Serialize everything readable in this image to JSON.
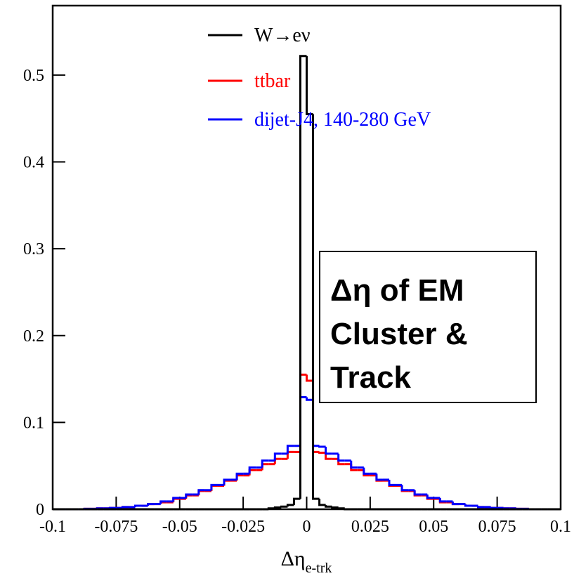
{
  "chart_data": {
    "type": "histogram",
    "xlabel": "Δη",
    "xlabel_subscript": "e-trk",
    "annotation": [
      "Δη of EM",
      "Cluster &",
      "Track"
    ],
    "xlim": [
      -0.1,
      0.1
    ],
    "ylim": [
      0,
      0.58
    ],
    "xticks": [
      -0.1,
      -0.075,
      -0.05,
      -0.025,
      0,
      0.025,
      0.05,
      0.075,
      0.1
    ],
    "yticks": [
      0,
      0.1,
      0.2,
      0.3,
      0.4,
      0.5
    ],
    "legend": "top",
    "bins": [
      -0.1,
      -0.0975,
      -0.095,
      -0.0925,
      -0.09,
      -0.0875,
      -0.085,
      -0.0825,
      -0.08,
      -0.0775,
      -0.075,
      -0.0725,
      -0.07,
      -0.0675,
      -0.065,
      -0.0625,
      -0.06,
      -0.0575,
      -0.055,
      -0.0525,
      -0.05,
      -0.0475,
      -0.045,
      -0.0425,
      -0.04,
      -0.0375,
      -0.035,
      -0.0325,
      -0.03,
      -0.0275,
      -0.025,
      -0.0225,
      -0.02,
      -0.0175,
      -0.015,
      -0.0125,
      -0.01,
      -0.0075,
      -0.005,
      -0.0025,
      0,
      0.0025,
      0.005,
      0.0075,
      0.01,
      0.0125,
      0.015,
      0.0175,
      0.02,
      0.0225,
      0.025,
      0.0275,
      0.03,
      0.0325,
      0.035,
      0.0375,
      0.04,
      0.0425,
      0.045,
      0.0475,
      0.05,
      0.0525,
      0.055,
      0.0575,
      0.06,
      0.0625,
      0.065,
      0.0675,
      0.07,
      0.0725,
      0.075,
      0.0775,
      0.08,
      0.0825,
      0.085,
      0.0875,
      0.09,
      0.0925,
      0.095,
      0.0975,
      0.1
    ],
    "series": [
      {
        "name": "W→eν",
        "color": "#000000",
        "values": [
          0,
          0,
          0,
          0,
          0,
          0,
          0,
          0,
          0,
          0,
          0,
          0,
          0,
          0,
          0,
          0,
          0,
          0,
          0,
          0,
          0,
          0,
          0,
          0,
          0,
          0,
          0,
          0,
          0,
          0,
          0,
          0,
          0,
          0,
          0.001,
          0.002,
          0.003,
          0.005,
          0.012,
          0.522,
          0.455,
          0.012,
          0.005,
          0.003,
          0.002,
          0.001,
          0,
          0,
          0,
          0,
          0,
          0,
          0,
          0,
          0,
          0,
          0,
          0,
          0,
          0,
          0,
          0,
          0,
          0,
          0,
          0,
          0,
          0,
          0,
          0,
          0,
          0,
          0,
          0,
          0,
          0,
          0,
          0,
          0,
          0
        ]
      },
      {
        "name": "ttbar",
        "color": "#ff0000",
        "values": [
          0,
          0,
          0,
          0,
          0,
          0.0005,
          0.0005,
          0.001,
          0.001,
          0.0015,
          0.0015,
          0.0025,
          0.0025,
          0.004,
          0.004,
          0.006,
          0.006,
          0.008,
          0.008,
          0.012,
          0.012,
          0.016,
          0.016,
          0.021,
          0.021,
          0.027,
          0.027,
          0.033,
          0.033,
          0.039,
          0.039,
          0.045,
          0.045,
          0.052,
          0.052,
          0.058,
          0.058,
          0.066,
          0.066,
          0.155,
          0.148,
          0.066,
          0.065,
          0.058,
          0.058,
          0.052,
          0.052,
          0.045,
          0.045,
          0.039,
          0.039,
          0.033,
          0.033,
          0.027,
          0.027,
          0.021,
          0.021,
          0.016,
          0.016,
          0.012,
          0.012,
          0.008,
          0.008,
          0.006,
          0.006,
          0.004,
          0.004,
          0.0025,
          0.0025,
          0.0015,
          0.0015,
          0.001,
          0.001,
          0.0005,
          0.0005,
          0,
          0,
          0,
          0,
          0
        ]
      },
      {
        "name": "dijet-J4, 140-280 GeV",
        "color": "#0000ff",
        "values": [
          0,
          0,
          0,
          0,
          0,
          0.0005,
          0.0005,
          0.001,
          0.001,
          0.0015,
          0.0015,
          0.0025,
          0.0025,
          0.004,
          0.004,
          0.006,
          0.006,
          0.009,
          0.009,
          0.013,
          0.013,
          0.017,
          0.017,
          0.022,
          0.022,
          0.028,
          0.028,
          0.034,
          0.034,
          0.041,
          0.041,
          0.048,
          0.048,
          0.056,
          0.056,
          0.064,
          0.064,
          0.073,
          0.073,
          0.129,
          0.126,
          0.073,
          0.072,
          0.064,
          0.064,
          0.056,
          0.056,
          0.048,
          0.048,
          0.041,
          0.041,
          0.034,
          0.034,
          0.028,
          0.028,
          0.022,
          0.022,
          0.017,
          0.017,
          0.013,
          0.013,
          0.009,
          0.009,
          0.006,
          0.006,
          0.004,
          0.004,
          0.0025,
          0.0025,
          0.0015,
          0.0015,
          0.001,
          0.001,
          0.0005,
          0.0005,
          0,
          0,
          0,
          0,
          0
        ]
      }
    ]
  }
}
